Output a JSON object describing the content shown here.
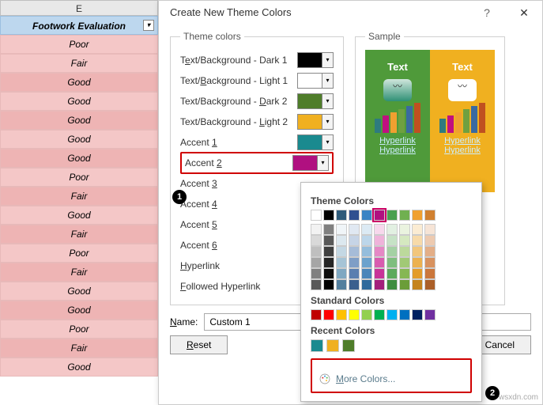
{
  "spreadsheet": {
    "column_letter": "E",
    "header": "Footwork Evaluation",
    "rows": [
      "Poor",
      "Fair",
      "Good",
      "Good",
      "Good",
      "Good",
      "Good",
      "Poor",
      "Fair",
      "Good",
      "Fair",
      "Poor",
      "Fair",
      "Good",
      "Good",
      "Poor",
      "Fair",
      "Good"
    ],
    "row_bg_colors": [
      "#f4c7c7",
      "#f4c7c7",
      "#eeb4b4",
      "#f4c7c7",
      "#eeb4b4",
      "#f4c7c7",
      "#eeb4b4",
      "#f4c7c7",
      "#eeb4b4",
      "#f4c7c7",
      "#eeb4b4",
      "#f4c7c7",
      "#eeb4b4",
      "#f4c7c7",
      "#eeb4b4",
      "#f4c7c7",
      "#eeb4b4",
      "#f4c7c7"
    ]
  },
  "dialog": {
    "title": "Create New Theme Colors",
    "fieldset_theme": "Theme colors",
    "fieldset_sample": "Sample",
    "slots": [
      {
        "label_pre": "T",
        "u": "e",
        "label_post": "xt/Background - Dark 1",
        "color": "#000000"
      },
      {
        "label_pre": "Text/",
        "u": "B",
        "label_post": "ackground - Light 1",
        "color": "#ffffff"
      },
      {
        "label_pre": "Text/Background - ",
        "u": "D",
        "label_post": "ark 2",
        "color": "#4f7d2a"
      },
      {
        "label_pre": "Text/Background - ",
        "u": "L",
        "label_post": "ight 2",
        "color": "#f0b020"
      },
      {
        "label_pre": "Accent ",
        "u": "1",
        "label_post": "",
        "color": "#1a8a8f"
      },
      {
        "label_pre": "Accent ",
        "u": "2",
        "label_post": "",
        "color": "#b01080",
        "highlight": true
      },
      {
        "label_pre": "Accent ",
        "u": "3",
        "label_post": "",
        "color": ""
      },
      {
        "label_pre": "Accent ",
        "u": "4",
        "label_post": "",
        "color": ""
      },
      {
        "label_pre": "Accent ",
        "u": "5",
        "label_post": "",
        "color": ""
      },
      {
        "label_pre": "Accent ",
        "u": "6",
        "label_post": "",
        "color": ""
      },
      {
        "label_pre": "",
        "u": "H",
        "label_post": "yperlink",
        "color": ""
      },
      {
        "label_pre": "",
        "u": "F",
        "label_post": "ollowed Hyperlink",
        "color": ""
      }
    ],
    "sample": {
      "panels": [
        {
          "bg": "#4f9a3a",
          "text": "Text",
          "shape_fill": "linear-gradient(#d0e6dc,#2f9075)",
          "bars": [
            "#2e7b7f",
            "#c01080",
            "#f0a030",
            "#6fa040",
            "#3a6aa0",
            "#c05020"
          ],
          "hyperlink": "Hyperlink"
        },
        {
          "bg": "#f0b020",
          "text": "Text",
          "shape_fill": "#ffffff",
          "bars": [
            "#2e7b7f",
            "#c01080",
            "#f0a030",
            "#6fa040",
            "#3a6aa0",
            "#c05020"
          ],
          "hyperlink": "Hyperlink"
        }
      ]
    },
    "name_label": "Name:",
    "name_value": "Custom 1",
    "reset": "Reset",
    "cancel": "Cancel"
  },
  "popup": {
    "sect_theme": "Theme Colors",
    "sect_std": "Standard Colors",
    "sect_recent": "Recent Colors",
    "more": "More Colors...",
    "theme_row1": [
      "#ffffff",
      "#000000",
      "#2f5b7a",
      "#305090",
      "#3a84c4",
      "#b01080",
      "#4aa050",
      "#70b050",
      "#f0a030",
      "#d08030"
    ],
    "theme_shades": [
      [
        "#f0f5f8",
        "#dce8ef",
        "#c4d8e4",
        "#a6c4d6",
        "#7fa8c2",
        "#537f9e"
      ],
      [
        "#e0e8f2",
        "#c6d4e6",
        "#a6bcd8",
        "#7f9ec6",
        "#5a7fb0",
        "#3b5f8e"
      ],
      [
        "#dceaf4",
        "#bcd6ea",
        "#94bddc",
        "#6ba2cd",
        "#4a86ba",
        "#2f6a9c"
      ],
      [
        "#f7d8ec",
        "#efb3da",
        "#e588c5",
        "#d85caf",
        "#c83498",
        "#a31f7b"
      ],
      [
        "#e2f0e2",
        "#c6e2c6",
        "#a4d1a4",
        "#7fbe7f",
        "#5caa5c",
        "#3f8d3f"
      ],
      [
        "#eaf3df",
        "#d5e8c0",
        "#bcd99c",
        "#a1c976",
        "#86b753",
        "#6b9d38"
      ],
      [
        "#fbecd3",
        "#f7daa9",
        "#f2c67c",
        "#ecb150",
        "#e39c2b",
        "#c5831d"
      ],
      [
        "#f6e4d6",
        "#edcab0",
        "#e3ae87",
        "#d8925f",
        "#cb773b",
        "#ab5f28"
      ]
    ],
    "std": [
      "#c00000",
      "#ff0000",
      "#ffc000",
      "#ffff00",
      "#92d050",
      "#00b050",
      "#00b0f0",
      "#0070c0",
      "#002060",
      "#7030a0"
    ],
    "recent": [
      "#1a8a8f",
      "#f0b020",
      "#4f7d2a"
    ]
  },
  "watermark": "wsxdn.com"
}
